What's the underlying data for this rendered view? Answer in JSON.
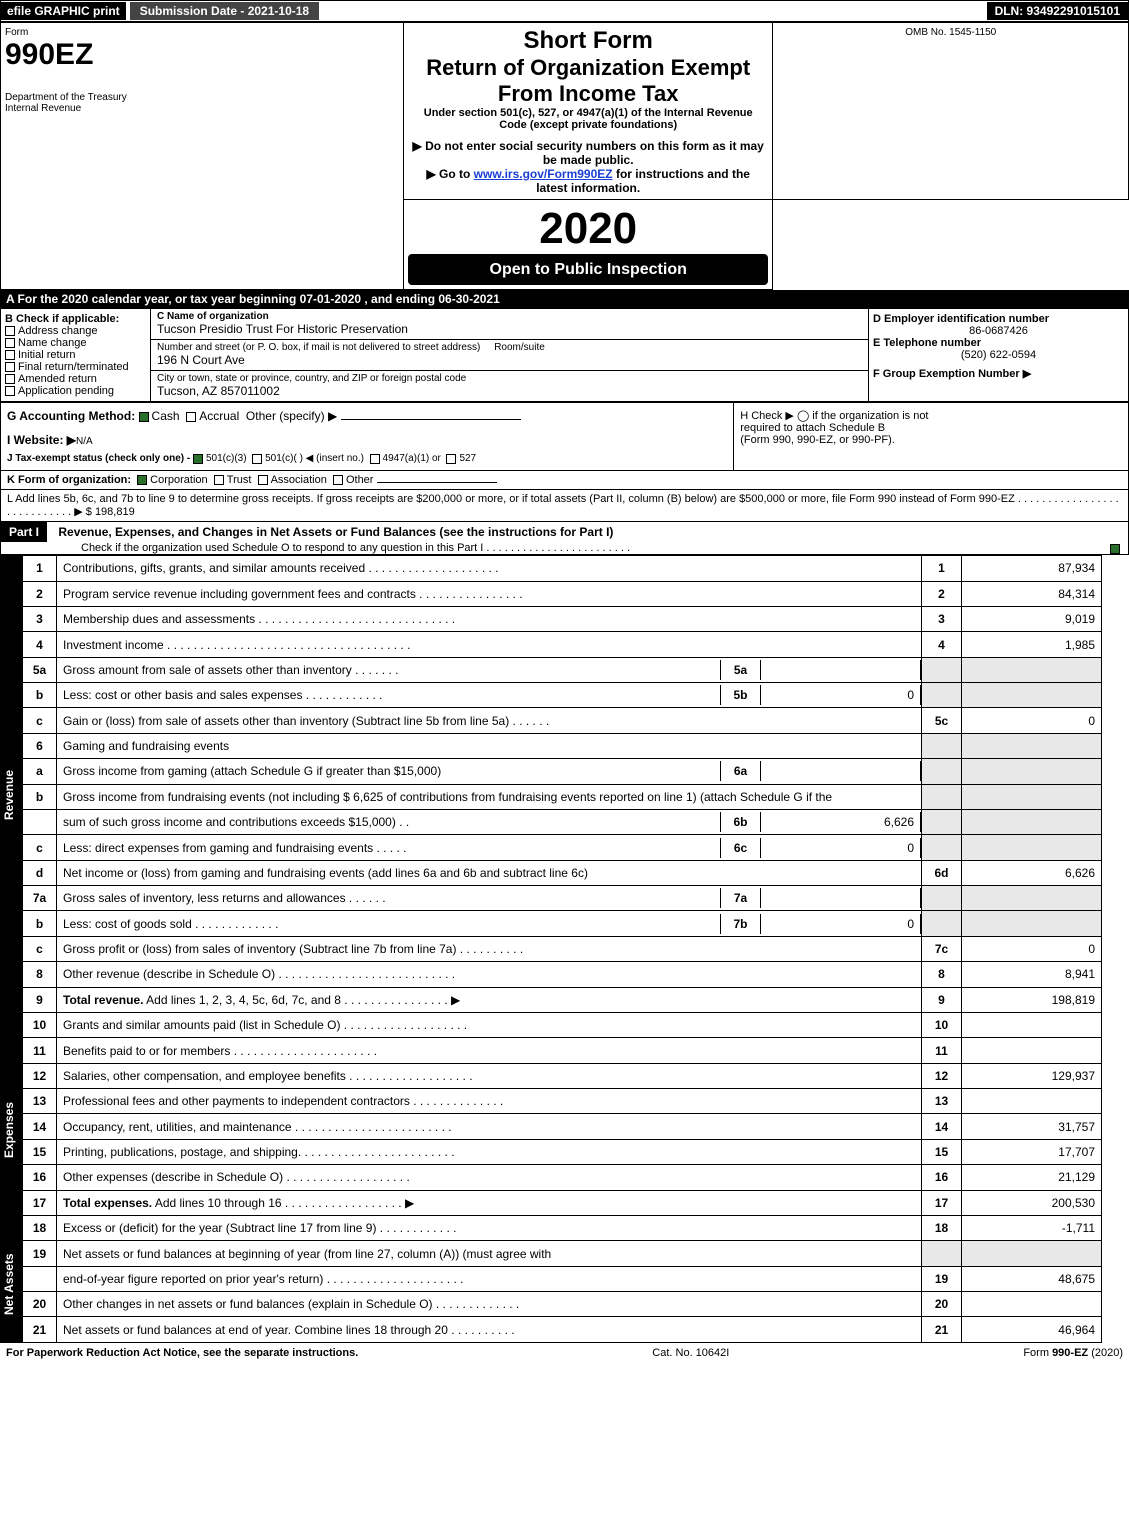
{
  "topbar": {
    "efile": "efile GRAPHIC print",
    "submission": "Submission Date - 2021-10-18",
    "dln": "DLN: 93492291015101"
  },
  "header": {
    "form_label": "Form",
    "form_no": "990EZ",
    "dept": "Department of the Treasury",
    "irs": "Internal Revenue",
    "short_form": "Short Form",
    "main_title": "Return of Organization Exempt From Income Tax",
    "subtitle": "Under section 501(c), 527, or 4947(a)(1) of the Internal Revenue Code (except private foundations)",
    "warn1": "▶ Do not enter social security numbers on this form as it may be made public.",
    "warn2_pre": "▶ Go to ",
    "warn2_link": "www.irs.gov/Form990EZ",
    "warn2_post": " for instructions and the latest information.",
    "omb": "OMB No. 1545-1150",
    "year": "2020",
    "open_public": "Open to Public Inspection"
  },
  "periodA": "A   For the 2020 calendar year, or tax year beginning 07-01-2020 , and ending 06-30-2021",
  "sectionB": {
    "title": "B  Check if applicable:",
    "items": [
      "Address change",
      "Name change",
      "Initial return",
      "Final return/terminated",
      "Amended return",
      "Application pending"
    ]
  },
  "sectionC": {
    "label": "C Name of organization",
    "name": "Tucson Presidio Trust For Historic Preservation",
    "addr_label": "Number and street (or P. O. box, if mail is not delivered to street address)",
    "addr": "196 N Court Ave",
    "room_label": "Room/suite",
    "city_label": "City or town, state or province, country, and ZIP or foreign postal code",
    "city": "Tucson, AZ  857011002"
  },
  "sectionD": {
    "label": "D Employer identification number",
    "value": "86-0687426"
  },
  "sectionE": {
    "label": "E Telephone number",
    "value": "(520) 622-0594"
  },
  "sectionF": {
    "label": "F Group Exemption Number  ▶"
  },
  "sectionG": {
    "label": "G Accounting Method:",
    "cash": "Cash",
    "accrual": "Accrual",
    "other": "Other (specify) ▶"
  },
  "sectionH": {
    "text1": "H   Check ▶   ◯  if the organization is not",
    "text2": "required to attach Schedule B",
    "text3": "(Form 990, 990-EZ, or 990-PF)."
  },
  "sectionI": {
    "pre": "I Website: ▶",
    "value": "N/A"
  },
  "sectionJ": {
    "pre": "J Tax-exempt status (check only one) - ",
    "opt1": "501(c)(3)",
    "opt2": "501(c)(  ) ◀ (insert no.)",
    "opt3": "4947(a)(1) or",
    "opt4": "527"
  },
  "sectionK": {
    "pre": "K Form of organization:",
    "opt1": "Corporation",
    "opt2": "Trust",
    "opt3": "Association",
    "opt4": "Other"
  },
  "sectionL": {
    "text": "L Add lines 5b, 6c, and 7b to line 9 to determine gross receipts. If gross receipts are $200,000 or more, or if total assets (Part II, column (B) below) are $500,000 or more, file Form 990 instead of Form 990-EZ  .  .  .  .  .  .  .  .  .  .  .  .  .  .  .  .  .  .  .  .  .  .  .  .  .  .  .  .  ▶ $ ",
    "amount": "198,819"
  },
  "part1": {
    "label": "Part I",
    "title": "Revenue, Expenses, and Changes in Net Assets or Fund Balances (see the instructions for Part I)",
    "check": "Check if the organization used Schedule O to respond to any question in this Part I  .  .  .  .  .  .  .  .  .  .  .  .  .  .  .  .  .  .  .  .  .  .  .  ."
  },
  "sections": {
    "revenue": "Revenue",
    "expenses": "Expenses",
    "netassets": "Net Assets"
  },
  "lines": [
    {
      "sec": "revenue",
      "ln": "1",
      "desc": "Contributions, gifts, grants, and similar amounts received  .  .  .  .  .  .  .  .  .  .  .  .  .  .  .  .  .  .  .  .",
      "ref": "1",
      "amt": "87,934"
    },
    {
      "sec": "revenue",
      "ln": "2",
      "desc": "Program service revenue including government fees and contracts  .  .  .  .  .  .  .  .  .  .  .  .  .  .  .  .",
      "ref": "2",
      "amt": "84,314"
    },
    {
      "sec": "revenue",
      "ln": "3",
      "desc": "Membership dues and assessments  .  .  .  .  .  .  .  .  .  .  .  .  .  .  .  .  .  .  .  .  .  .  .  .  .  .  .  .  .  .",
      "ref": "3",
      "amt": "9,019"
    },
    {
      "sec": "revenue",
      "ln": "4",
      "desc": "Investment income  .  .  .  .  .  .  .  .  .  .  .  .  .  .  .  .  .  .  .  .  .  .  .  .  .  .  .  .  .  .  .  .  .  .  .  .  .",
      "ref": "4",
      "amt": "1,985"
    },
    {
      "sec": "revenue",
      "ln": "5a",
      "desc": "Gross amount from sale of assets other than inventory  .  .  .  .  .  .  .",
      "sub_ref": "5a",
      "sub_amt": "",
      "grey": true
    },
    {
      "sec": "revenue",
      "ln": "b",
      "desc": "Less: cost or other basis and sales expenses  .  .  .  .  .  .  .  .  .  .  .  .",
      "sub_ref": "5b",
      "sub_amt": "0",
      "grey": true
    },
    {
      "sec": "revenue",
      "ln": "c",
      "desc": "Gain or (loss) from sale of assets other than inventory (Subtract line 5b from line 5a)  .  .  .  .  .  .",
      "ref": "5c",
      "amt": "0"
    },
    {
      "sec": "revenue",
      "ln": "6",
      "desc": "Gaming and fundraising events",
      "header_only": true
    },
    {
      "sec": "revenue",
      "ln": "a",
      "desc": "Gross income from gaming (attach Schedule G if greater than $15,000)",
      "sub_ref": "6a",
      "sub_amt": "",
      "grey": true
    },
    {
      "sec": "revenue",
      "ln": "b",
      "desc": "Gross income from fundraising events (not including $  6,625              of contributions from fundraising events reported on line 1) (attach Schedule G if the",
      "multiline": true,
      "grey": true
    },
    {
      "sec": "revenue",
      "ln": "",
      "desc": "sum of such gross income and contributions exceeds $15,000)     .   .",
      "sub_ref": "6b",
      "sub_amt": "6,626",
      "grey": true,
      "cont": true
    },
    {
      "sec": "revenue",
      "ln": "c",
      "desc": "Less: direct expenses from gaming and fundraising events  .  .  .  .  .",
      "sub_ref": "6c",
      "sub_amt": "0",
      "grey": true
    },
    {
      "sec": "revenue",
      "ln": "d",
      "desc": "Net income or (loss) from gaming and fundraising events (add lines 6a and 6b and subtract line 6c)",
      "ref": "6d",
      "amt": "6,626"
    },
    {
      "sec": "revenue",
      "ln": "7a",
      "desc": "Gross sales of inventory, less returns and allowances  .  .  .  .  .  .",
      "sub_ref": "7a",
      "sub_amt": "",
      "grey": true
    },
    {
      "sec": "revenue",
      "ln": "b",
      "desc": "Less: cost of goods sold       .   .   .   .   .   .   .   .   .   .   .   .   .",
      "sub_ref": "7b",
      "sub_amt": "0",
      "grey": true
    },
    {
      "sec": "revenue",
      "ln": "c",
      "desc": "Gross profit or (loss) from sales of inventory (Subtract line 7b from line 7a)  .  .  .  .  .  .  .  .  .  .",
      "ref": "7c",
      "amt": "0"
    },
    {
      "sec": "revenue",
      "ln": "8",
      "desc": "Other revenue (describe in Schedule O)  .  .  .  .  .  .  .  .  .  .  .  .  .  .  .  .  .  .  .  .  .  .  .  .  .  .  .",
      "ref": "8",
      "amt": "8,941"
    },
    {
      "sec": "revenue",
      "ln": "9",
      "desc": "Total revenue. Add lines 1, 2, 3, 4, 5c, 6d, 7c, and 8   .  .  .  .  .  .  .  .  .  .  .  .  .  .  .  .   ▶",
      "ref": "9",
      "amt": "198,819",
      "bold": true
    },
    {
      "sec": "expenses",
      "ln": "10",
      "desc": "Grants and similar amounts paid (list in Schedule O)  .  .  .  .  .  .  .  .  .  .  .  .  .  .  .  .  .  .  .",
      "ref": "10",
      "amt": ""
    },
    {
      "sec": "expenses",
      "ln": "11",
      "desc": "Benefits paid to or for members      .   .   .   .   .   .   .   .   .   .   .   .   .   .   .   .   .   .   .   .   .   .",
      "ref": "11",
      "amt": ""
    },
    {
      "sec": "expenses",
      "ln": "12",
      "desc": "Salaries, other compensation, and employee benefits  .  .  .  .  .  .  .  .  .  .  .  .  .  .  .  .  .  .  .",
      "ref": "12",
      "amt": "129,937"
    },
    {
      "sec": "expenses",
      "ln": "13",
      "desc": "Professional fees and other payments to independent contractors  .  .  .  .  .  .  .  .  .  .  .  .  .  .",
      "ref": "13",
      "amt": ""
    },
    {
      "sec": "expenses",
      "ln": "14",
      "desc": "Occupancy, rent, utilities, and maintenance  .  .  .  .  .  .  .  .  .  .  .  .  .  .  .  .  .  .  .  .  .  .  .  .",
      "ref": "14",
      "amt": "31,757"
    },
    {
      "sec": "expenses",
      "ln": "15",
      "desc": "Printing, publications, postage, and shipping.  .  .  .  .  .  .  .  .  .  .  .  .  .  .  .  .  .  .  .  .  .  .  .",
      "ref": "15",
      "amt": "17,707"
    },
    {
      "sec": "expenses",
      "ln": "16",
      "desc": "Other expenses (describe in Schedule O)     .   .   .   .   .   .   .   .   .   .   .   .   .   .   .   .   .   .   .",
      "ref": "16",
      "amt": "21,129"
    },
    {
      "sec": "expenses",
      "ln": "17",
      "desc": "Total expenses. Add lines 10 through 16     .   .   .   .   .   .   .   .   .   .   .   .   .   .   .   .   .   .  ▶",
      "ref": "17",
      "amt": "200,530",
      "bold": true
    },
    {
      "sec": "netassets",
      "ln": "18",
      "desc": "Excess or (deficit) for the year (Subtract line 17 from line 9)       .   .   .   .   .   .   .   .   .   .   .   .",
      "ref": "18",
      "amt": "-1,711"
    },
    {
      "sec": "netassets",
      "ln": "19",
      "desc": "Net assets or fund balances at beginning of year (from line 27, column (A)) (must agree with",
      "multiline": true
    },
    {
      "sec": "netassets",
      "ln": "",
      "desc": "end-of-year figure reported on prior year's return)  .  .  .  .  .  .  .  .  .  .  .  .  .  .  .  .  .  .  .  .  .",
      "ref": "19",
      "amt": "48,675",
      "cont": true
    },
    {
      "sec": "netassets",
      "ln": "20",
      "desc": "Other changes in net assets or fund balances (explain in Schedule O)  .  .  .  .  .  .  .  .  .  .  .  .  .",
      "ref": "20",
      "amt": ""
    },
    {
      "sec": "netassets",
      "ln": "21",
      "desc": "Net assets or fund balances at end of year. Combine lines 18 through 20  .  .  .  .  .  .  .  .  .  .",
      "ref": "21",
      "amt": "46,964"
    }
  ],
  "footer": {
    "left": "For Paperwork Reduction Act Notice, see the separate instructions.",
    "mid": "Cat. No. 10642I",
    "right": "Form 990-EZ (2020)"
  },
  "colors": {
    "black": "#000000",
    "white": "#ffffff",
    "grey_bg": "#e8e8e8",
    "check_green": "#2a6f2a",
    "link_blue": "#1a3fd6"
  }
}
